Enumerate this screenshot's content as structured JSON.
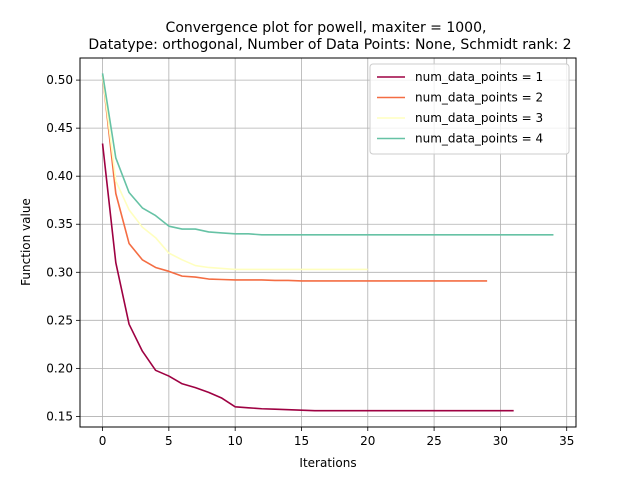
{
  "chart_data": {
    "type": "line",
    "title_line1": "Convergence plot for powell, maxiter = 1000,",
    "title_line2": "Datatype: orthogonal, Number of Data Points: None, Schmidt rank: 2",
    "xlabel": "Iterations",
    "ylabel": "Function value",
    "xlim": [
      -1.7,
      35.7
    ],
    "ylim": [
      0.139,
      0.523
    ],
    "xticks": [
      0,
      5,
      10,
      15,
      20,
      25,
      30,
      35
    ],
    "yticks": [
      0.15,
      0.2,
      0.25,
      0.3,
      0.35,
      0.4,
      0.45,
      0.5
    ],
    "ytick_labels": [
      "0.15",
      "0.20",
      "0.25",
      "0.30",
      "0.35",
      "0.40",
      "0.45",
      "0.50"
    ],
    "grid": true,
    "legend_position": "upper-right",
    "series": [
      {
        "name": "num_data_points = 1",
        "color": "#9e0142",
        "x": [
          0,
          1,
          2,
          3,
          4,
          5,
          6,
          7,
          8,
          9,
          10,
          11,
          12,
          13,
          14,
          15,
          16,
          17,
          18,
          19,
          20,
          21,
          22,
          23,
          24,
          25,
          26,
          27,
          28,
          29,
          30,
          31
        ],
        "y": [
          0.434,
          0.31,
          0.246,
          0.218,
          0.198,
          0.192,
          0.184,
          0.18,
          0.175,
          0.169,
          0.16,
          0.159,
          0.158,
          0.1575,
          0.157,
          0.1565,
          0.156,
          0.156,
          0.156,
          0.156,
          0.156,
          0.156,
          0.156,
          0.156,
          0.156,
          0.156,
          0.156,
          0.156,
          0.156,
          0.156,
          0.156,
          0.156
        ]
      },
      {
        "name": "num_data_points = 2",
        "color": "#f46d43",
        "x": [
          0,
          1,
          2,
          3,
          4,
          5,
          6,
          7,
          8,
          9,
          10,
          11,
          12,
          13,
          14,
          15,
          16,
          17,
          18,
          19,
          20,
          21,
          22,
          23,
          24,
          25,
          26,
          27,
          28,
          29
        ],
        "y": [
          0.505,
          0.382,
          0.33,
          0.313,
          0.305,
          0.301,
          0.296,
          0.295,
          0.293,
          0.2925,
          0.292,
          0.292,
          0.292,
          0.2915,
          0.2915,
          0.291,
          0.291,
          0.291,
          0.291,
          0.291,
          0.291,
          0.291,
          0.291,
          0.291,
          0.291,
          0.291,
          0.291,
          0.291,
          0.291,
          0.291
        ]
      },
      {
        "name": "num_data_points = 3",
        "color": "#ffffbf",
        "x": [
          0,
          1,
          2,
          3,
          4,
          5,
          6,
          7,
          8,
          9,
          10,
          11,
          12,
          13,
          14,
          15,
          16,
          17,
          18,
          19,
          20
        ],
        "y": [
          0.505,
          0.395,
          0.365,
          0.347,
          0.336,
          0.32,
          0.313,
          0.307,
          0.305,
          0.304,
          0.303,
          0.303,
          0.303,
          0.303,
          0.303,
          0.303,
          0.303,
          0.303,
          0.303,
          0.303,
          0.303
        ]
      },
      {
        "name": "num_data_points = 4",
        "color": "#66c2a5",
        "x": [
          0,
          1,
          2,
          3,
          4,
          5,
          6,
          7,
          8,
          9,
          10,
          11,
          12,
          13,
          14,
          15,
          16,
          17,
          18,
          19,
          20,
          21,
          22,
          23,
          24,
          25,
          26,
          27,
          28,
          29,
          30,
          31,
          32,
          33,
          34
        ],
        "y": [
          0.507,
          0.419,
          0.383,
          0.367,
          0.359,
          0.348,
          0.345,
          0.345,
          0.342,
          0.341,
          0.34,
          0.34,
          0.339,
          0.339,
          0.339,
          0.339,
          0.339,
          0.339,
          0.339,
          0.339,
          0.339,
          0.339,
          0.339,
          0.339,
          0.339,
          0.339,
          0.339,
          0.339,
          0.339,
          0.339,
          0.339,
          0.339,
          0.339,
          0.339,
          0.339
        ]
      }
    ]
  }
}
